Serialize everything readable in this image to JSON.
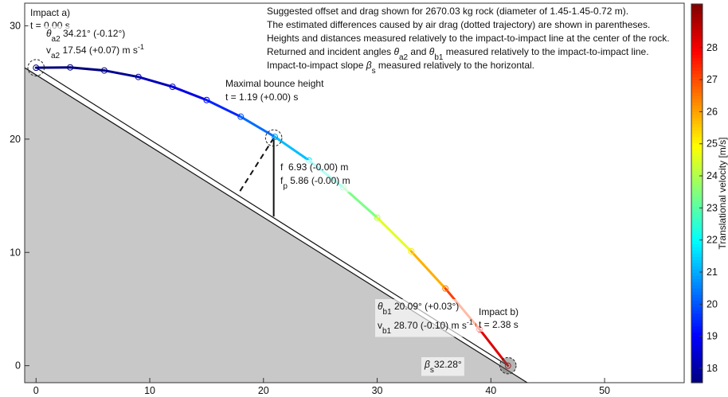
{
  "chart_data": {
    "type": "trajectory",
    "xlim": [
      -1,
      57
    ],
    "ylim": [
      -1.5,
      32
    ],
    "xticks": [
      0,
      10,
      20,
      30,
      40,
      50
    ],
    "yticks": [
      0,
      10,
      20,
      30
    ],
    "ground": {
      "x": [
        -1,
        43.2
      ],
      "values": [
        26.3,
        -1.5
      ],
      "color": "#c8c8c8"
    },
    "impact_line": {
      "x": [
        0,
        41.5
      ],
      "values": [
        26.3,
        0
      ]
    },
    "bounce_line": {
      "x": [
        20.9,
        20.9
      ],
      "values": [
        20.1,
        13.17
      ]
    },
    "normal_line": {
      "x": [
        20.9,
        17.77
      ],
      "values": [
        20.1,
        15.15
      ]
    },
    "rock_positions": {
      "x": [
        0,
        20.9,
        41.5
      ],
      "values": [
        26.3,
        20.1,
        0
      ],
      "radius": 0.72
    },
    "x": [
      0,
      3,
      6,
      9,
      12,
      15,
      18,
      21,
      24,
      27,
      30,
      33,
      36,
      39,
      41.5
    ],
    "series": [
      {
        "values": [
          26.3,
          26.33,
          26.06,
          25.49,
          24.62,
          23.45,
          21.98,
          20.2,
          18.12,
          15.75,
          13.07,
          10.09,
          6.81,
          3.22,
          0
        ],
        "velocity": [
          17.54,
          17.45,
          17.61,
          17.94,
          18.42,
          19.06,
          19.83,
          20.72,
          21.72,
          22.81,
          23.98,
          25.21,
          26.5,
          27.84,
          28.7
        ]
      }
    ],
    "colorbar": {
      "label": "Translational velocity [m/s]",
      "colormap": "jet",
      "lim": [
        17.55,
        29.36
      ],
      "ticks": [
        18,
        19,
        20,
        21,
        22,
        23,
        24,
        25,
        26,
        27,
        28
      ]
    },
    "annotations": [
      {
        "lines": [
          [
            {
              "text": "Impact a)"
            }
          ],
          [
            {
              "text": "t = 0.00 s"
            }
          ]
        ]
      },
      {
        "lines": [
          [
            {
              "italic": "θ"
            },
            {
              "sub": "a2"
            },
            {
              "text": " 34.21° (-0.12°)"
            }
          ],
          [
            {
              "text": "v"
            },
            {
              "sub": "a2"
            },
            {
              "text": " 17.54 (+0.07) m s"
            },
            {
              "sup": "-1"
            }
          ]
        ]
      },
      {
        "lines": [
          [
            {
              "text": "Maximal bounce height"
            }
          ],
          [
            {
              "text": "t = 1.19 (+0.00) s"
            }
          ]
        ]
      },
      {
        "lines": [
          [
            {
              "text": "f  6.93 (-0.00) m"
            }
          ],
          [
            {
              "text": "f"
            },
            {
              "sub": "p"
            },
            {
              "text": " 5.86 (-0.00) m"
            }
          ]
        ]
      },
      {
        "lines": [
          [
            {
              "italic": "θ"
            },
            {
              "sub": "b1"
            },
            {
              "text": " 20.09° (+0.03°)"
            }
          ],
          [
            {
              "text": "v"
            },
            {
              "sub": "b1"
            },
            {
              "text": " 28.70 (-0.10) m s"
            },
            {
              "sup": "-1"
            }
          ]
        ]
      },
      {
        "lines": [
          [
            {
              "text": "Impact b)"
            }
          ],
          [
            {
              "text": "t = 2.38 s"
            }
          ]
        ]
      },
      {
        "lines": [
          [
            {
              "italic": "β"
            },
            {
              "sub": "s"
            },
            {
              "text": "32.28°"
            }
          ]
        ]
      },
      {
        "lines": [
          [
            {
              "text": "Suggested offset and drag shown for 2670.03 kg rock (diameter of 1.45-1.45-0.72 m)."
            }
          ],
          [
            {
              "text": "The estimated differences caused by air drag (dotted trajectory) are shown in parentheses."
            }
          ],
          [
            {
              "text": "Heights and distances measured relatively to the impact-to-impact line at the center of the rock."
            }
          ],
          [
            {
              "text": "Returned and incident angles "
            },
            {
              "italic": "θ"
            },
            {
              "sub": "a2"
            },
            {
              "text": " and "
            },
            {
              "italic": "θ"
            },
            {
              "sub": "b1"
            },
            {
              "text": " measured relatively to the impact-to-impact line."
            }
          ],
          [
            {
              "text": "Impact-to-impact slope "
            },
            {
              "italic": "β"
            },
            {
              "sub": "s"
            },
            {
              "text": " measured relatively to the horizontal."
            }
          ]
        ]
      }
    ]
  }
}
